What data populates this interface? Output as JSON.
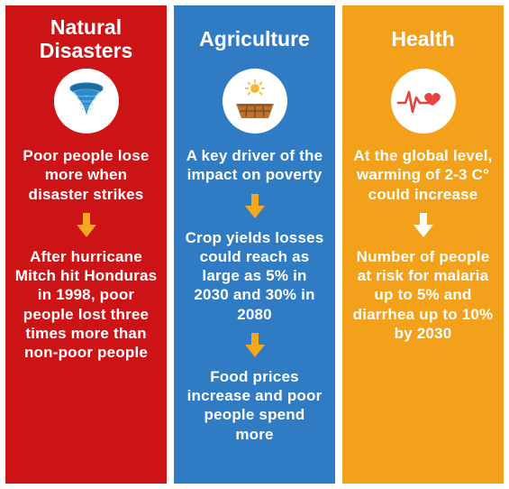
{
  "columns": [
    {
      "title": "Natural Disasters",
      "bg_color": "#cc1417",
      "arrow_color": "#f5a81c",
      "icon": "tornado",
      "blocks": [
        "Poor people lose more when disaster strikes",
        "After hurricane Mitch hit Honduras in 1998, poor people lost three times more than non-poor people"
      ]
    },
    {
      "title": "Agriculture",
      "bg_color": "#2f7cc4",
      "arrow_color": "#f5a81c",
      "icon": "drought",
      "blocks": [
        "A key driver of the impact on poverty",
        "Crop yields losses could reach as large as 5% in 2030 and 30% in 2080",
        "Food prices increase and poor people spend more"
      ]
    },
    {
      "title": "Health",
      "bg_color": "#f3a11a",
      "arrow_color": "#ffffff",
      "icon": "heartbeat",
      "blocks": [
        "At the global level, warming of 2-3 C° could increase",
        "Number of people at risk for malaria up to 5% and diarrhea up to 10% by 2030"
      ]
    }
  ],
  "icon_svg": {
    "tornado": "<svg width='52' height='52' viewBox='0 0 52 52'><ellipse cx='26' cy='12' rx='18' ry='6' fill='#1e6aa3'/><ellipse cx='26' cy='12' rx='18' ry='6' fill='none' stroke='#247fb8' stroke-width='1.2'/><path d='M11 14 Q18 24 22 30 Q25 36 26 42 Q27 36 30 30 Q34 24 41 14' fill='#2a8bc9'/><ellipse cx='26' cy='17' rx='14' ry='4' fill='none' stroke='#7ec3e8' stroke-width='0.9' opacity='0.7'/><ellipse cx='26' cy='23' rx='10' ry='3' fill='none' stroke='#7ec3e8' stroke-width='0.9' opacity='0.7'/><ellipse cx='26' cy='29' rx='7' ry='2.2' fill='none' stroke='#7ec3e8' stroke-width='0.9' opacity='0.7'/><ellipse cx='26' cy='35' rx='4.5' ry='1.6' fill='none' stroke='#7ec3e8' stroke-width='0.9' opacity='0.7'/></svg>",
    "drought": "<svg width='54' height='54' viewBox='0 0 54 54'><circle cx='27' cy='13' r='5' fill='#f7b733'/><g stroke='#f7b733' stroke-width='1.6'><line x1='27' y1='3' x2='27' y2='7'/><line x1='35' y1='6' x2='32' y2='9'/><line x1='38' y1='13' x2='34' y2='13'/><line x1='35' y1='20' x2='32' y2='17'/><line x1='19' y1='6' x2='22' y2='9'/><line x1='16' y1='13' x2='20' y2='13'/><line x1='19' y1='20' x2='22' y2='17'/></g><path d='M6 30 L48 30 L42 46 L12 46 Z' fill='#b87333'/><path d='M8 30 L46 30 L45 33 L9 33 Z' fill='#9c5a1f'/><line x1='18' y1='33' x2='17' y2='44' stroke='#7a4516' stroke-width='1.3'/><line x1='27' y1='33' x2='27' y2='45' stroke='#7a4516' stroke-width='1.3'/><line x1='36' y1='33' x2='37' y2='44' stroke='#7a4516' stroke-width='1.3'/><line x1='10' y1='38' x2='44' y2='38' stroke='#7a4516' stroke-width='1.2'/></svg>",
    "heartbeat": "<svg width='60' height='40' viewBox='0 0 60 40'><polyline points='2,22 10,22 14,10 18,32 22,16 26,22 40,22' fill='none' stroke='#e8433f' stroke-width='2.6' stroke-linejoin='round' stroke-linecap='round'/><path d='M48 13 c-2.6-3.3-7.2-2.4-8 1.4 c-0.8-3.8-5.4-4.7-8-1.4 c-2.3 3 0 6.8 8 12.2 c8-5.4 10.3-9.2 8-12.2 Z' fill='#e8433f'/></svg>"
  },
  "arrow_svg": "<svg width='26' height='28' viewBox='0 0 26 28'><rect x='9' y='0' width='8' height='14' fill='CCC'/><path d='M2 13 L24 13 L13 27 Z' fill='CCC'/></svg>"
}
